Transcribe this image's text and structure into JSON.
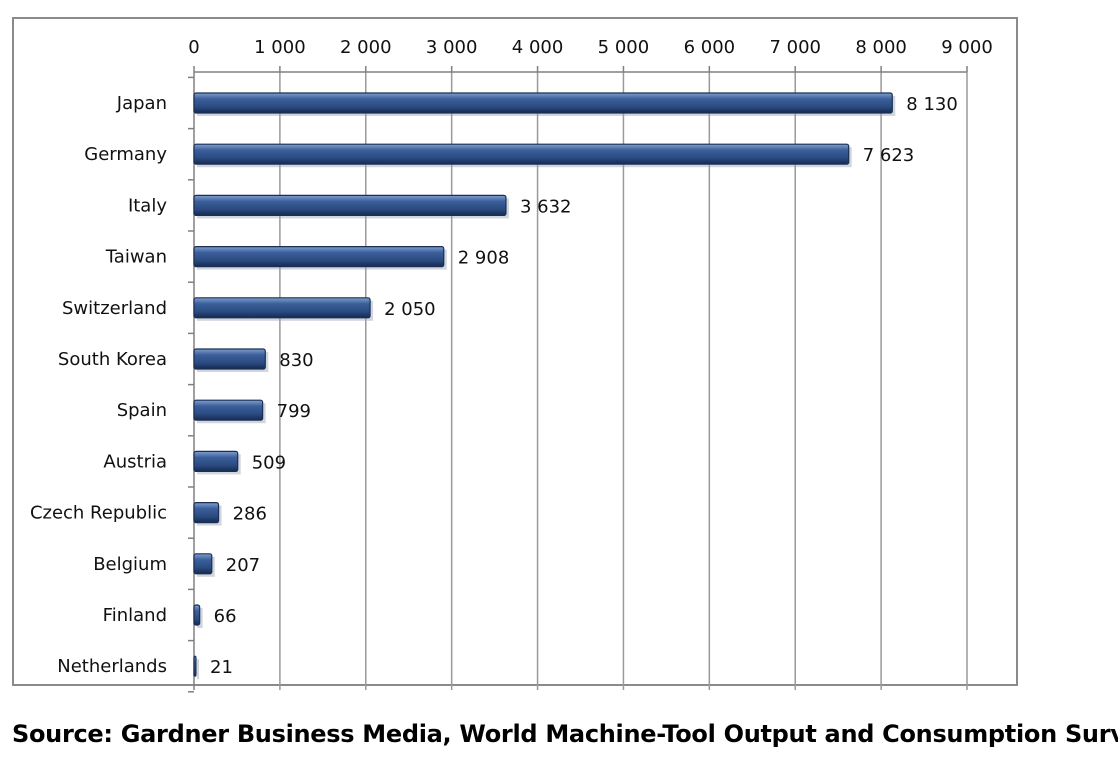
{
  "chart_data": {
    "type": "bar",
    "orientation": "horizontal",
    "title": "",
    "xlabel": "",
    "ylabel": "",
    "categories": [
      "Japan",
      "Germany",
      "Italy",
      "Taiwan",
      "Switzerland",
      "South Korea",
      "Spain",
      "Austria",
      "Czech Republic",
      "Belgium",
      "Finland",
      "Netherlands"
    ],
    "values": [
      8130,
      7623,
      3632,
      2908,
      2050,
      830,
      799,
      509,
      286,
      207,
      66,
      21
    ],
    "value_labels": [
      "8 130",
      "7 623",
      "3 632",
      "2 908",
      "2 050",
      "830",
      "799",
      "509",
      "286",
      "207",
      "66",
      "21"
    ],
    "xlim": [
      0,
      9000
    ],
    "x_ticks": [
      0,
      1000,
      2000,
      3000,
      4000,
      5000,
      6000,
      7000,
      8000,
      9000
    ],
    "x_tick_labels": [
      "0",
      "1 000",
      "2 000",
      "3 000",
      "4 000",
      "5 000",
      "6 000",
      "7 000",
      "8 000",
      "9 000"
    ],
    "x_axis_position": "top",
    "grid": "vertical",
    "legend": "none",
    "bar_color": "#2e4f86",
    "bar_edge_color": "#1b2f55",
    "grid_color": "#9a9a9a"
  },
  "source": "Source: Gardner Business Media, World Machine-Tool Output and Consumption Survey"
}
